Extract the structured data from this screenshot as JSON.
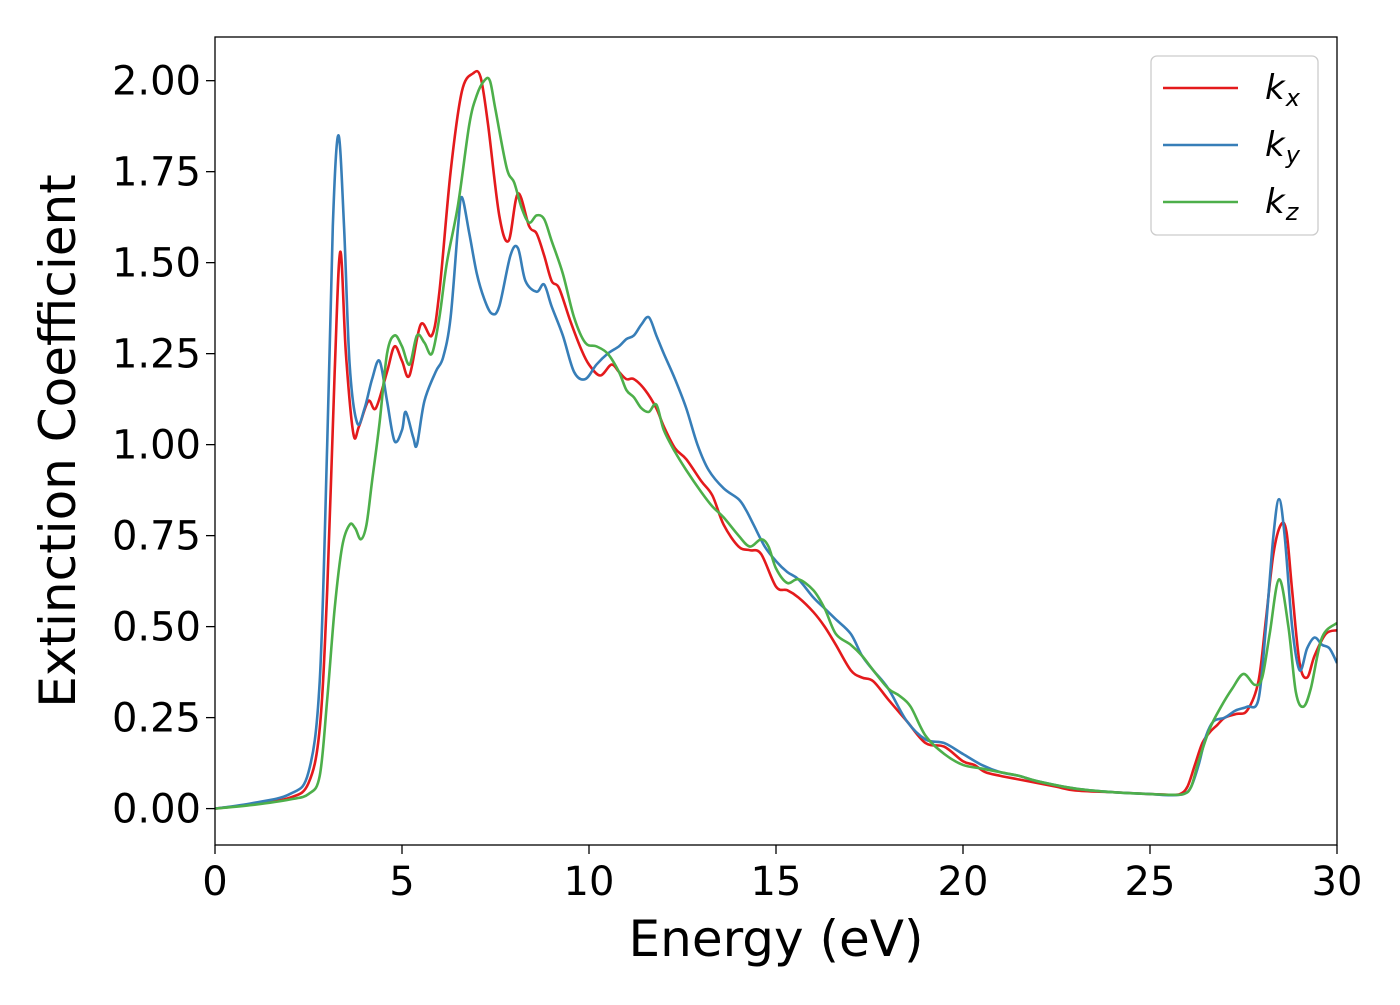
{
  "chart_data": {
    "type": "line",
    "title": "",
    "xlabel": "Energy (eV)",
    "ylabel": "Extinction Coefficient",
    "xlim": [
      0,
      30
    ],
    "ylim": [
      -0.1,
      2.12
    ],
    "xticks": [
      0,
      5,
      10,
      15,
      20,
      25,
      30
    ],
    "xtick_labels": [
      "0",
      "5",
      "10",
      "15",
      "20",
      "25",
      "30"
    ],
    "yticks": [
      0,
      0.25,
      0.5,
      0.75,
      1.0,
      1.25,
      1.5,
      1.75,
      2.0
    ],
    "ytick_labels": [
      "0.00",
      "0.25",
      "0.50",
      "0.75",
      "1.00",
      "1.25",
      "1.50",
      "1.75",
      "2.00"
    ],
    "grid": false,
    "legend_position": "top-right",
    "series": [
      {
        "name": "k_x",
        "label_main": "k",
        "label_sub": "x",
        "color": "#e41a1c",
        "x": [
          0,
          1,
          2,
          2.5,
          2.8,
          3.0,
          3.2,
          3.35,
          3.5,
          3.7,
          3.85,
          4.1,
          4.3,
          4.6,
          4.8,
          5.0,
          5.2,
          5.5,
          5.8,
          6.0,
          6.3,
          6.6,
          6.9,
          7.1,
          7.3,
          7.6,
          7.85,
          8.1,
          8.4,
          8.6,
          8.8,
          9.0,
          9.2,
          9.5,
          9.8,
          10.0,
          10.3,
          10.6,
          10.8,
          11.0,
          11.2,
          11.5,
          11.8,
          12.0,
          12.3,
          12.6,
          13.0,
          13.3,
          13.6,
          14.0,
          14.3,
          14.6,
          15.0,
          15.3,
          15.6,
          16.0,
          16.3,
          16.6,
          17.0,
          17.3,
          17.6,
          18.0,
          18.5,
          19.0,
          19.5,
          20.0,
          20.3,
          20.6,
          21.0,
          21.5,
          22.0,
          22.5,
          23.0,
          24.0,
          25.0,
          25.5,
          25.8,
          26.0,
          26.2,
          26.4,
          26.6,
          26.8,
          27.0,
          27.3,
          27.6,
          27.9,
          28.1,
          28.3,
          28.5,
          28.65,
          28.8,
          29.0,
          29.2,
          29.4,
          29.7,
          30.0
        ],
        "y": [
          0.0,
          0.012,
          0.03,
          0.07,
          0.22,
          0.6,
          1.2,
          1.53,
          1.25,
          1.03,
          1.05,
          1.12,
          1.1,
          1.2,
          1.27,
          1.23,
          1.19,
          1.33,
          1.3,
          1.42,
          1.75,
          1.97,
          2.02,
          2.01,
          1.88,
          1.63,
          1.56,
          1.69,
          1.6,
          1.58,
          1.52,
          1.45,
          1.43,
          1.34,
          1.26,
          1.22,
          1.19,
          1.22,
          1.2,
          1.18,
          1.18,
          1.15,
          1.1,
          1.05,
          0.99,
          0.96,
          0.9,
          0.86,
          0.78,
          0.72,
          0.71,
          0.7,
          0.61,
          0.6,
          0.58,
          0.54,
          0.5,
          0.45,
          0.38,
          0.36,
          0.35,
          0.3,
          0.24,
          0.18,
          0.17,
          0.13,
          0.12,
          0.1,
          0.09,
          0.08,
          0.07,
          0.06,
          0.05,
          0.045,
          0.04,
          0.038,
          0.04,
          0.06,
          0.12,
          0.18,
          0.21,
          0.23,
          0.25,
          0.26,
          0.27,
          0.35,
          0.52,
          0.7,
          0.78,
          0.76,
          0.6,
          0.4,
          0.36,
          0.42,
          0.48,
          0.49
        ]
      },
      {
        "name": "k_y",
        "label_main": "k",
        "label_sub": "y",
        "color": "#377eb8",
        "x": [
          0,
          1,
          2,
          2.5,
          2.8,
          3.0,
          3.15,
          3.3,
          3.45,
          3.6,
          3.8,
          4.0,
          4.2,
          4.4,
          4.6,
          4.8,
          5.0,
          5.1,
          5.3,
          5.4,
          5.6,
          5.9,
          6.1,
          6.3,
          6.5,
          6.6,
          6.8,
          7.0,
          7.2,
          7.4,
          7.6,
          7.9,
          8.1,
          8.3,
          8.6,
          8.8,
          9.0,
          9.3,
          9.6,
          9.9,
          10.2,
          10.5,
          10.8,
          11.0,
          11.2,
          11.4,
          11.6,
          11.8,
          12.0,
          12.3,
          12.6,
          12.9,
          13.2,
          13.6,
          14.0,
          14.2,
          14.4,
          14.7,
          15.0,
          15.3,
          15.6,
          16.0,
          16.3,
          16.6,
          17.0,
          17.3,
          17.6,
          18.0,
          18.5,
          19.0,
          19.5,
          20.0,
          20.5,
          21.0,
          21.5,
          22.0,
          23.0,
          24.0,
          25.0,
          25.5,
          25.9,
          26.1,
          26.3,
          26.5,
          26.7,
          27.0,
          27.3,
          27.6,
          27.9,
          28.1,
          28.3,
          28.45,
          28.6,
          28.8,
          29.0,
          29.2,
          29.4,
          29.6,
          29.8,
          30.0
        ],
        "y": [
          0.0,
          0.015,
          0.04,
          0.1,
          0.35,
          1.0,
          1.6,
          1.85,
          1.6,
          1.22,
          1.06,
          1.1,
          1.18,
          1.23,
          1.12,
          1.01,
          1.04,
          1.09,
          1.02,
          1.0,
          1.12,
          1.2,
          1.24,
          1.35,
          1.6,
          1.68,
          1.58,
          1.47,
          1.4,
          1.36,
          1.38,
          1.52,
          1.54,
          1.45,
          1.42,
          1.44,
          1.38,
          1.3,
          1.2,
          1.18,
          1.22,
          1.25,
          1.27,
          1.29,
          1.3,
          1.33,
          1.35,
          1.3,
          1.25,
          1.18,
          1.1,
          1.0,
          0.93,
          0.88,
          0.85,
          0.82,
          0.78,
          0.72,
          0.68,
          0.65,
          0.63,
          0.58,
          0.55,
          0.52,
          0.48,
          0.42,
          0.38,
          0.33,
          0.24,
          0.19,
          0.18,
          0.15,
          0.12,
          0.1,
          0.09,
          0.075,
          0.055,
          0.045,
          0.04,
          0.037,
          0.04,
          0.06,
          0.12,
          0.2,
          0.24,
          0.25,
          0.27,
          0.28,
          0.3,
          0.5,
          0.75,
          0.85,
          0.75,
          0.5,
          0.38,
          0.44,
          0.47,
          0.45,
          0.44,
          0.4
        ]
      },
      {
        "name": "k_z",
        "label_main": "k",
        "label_sub": "z",
        "color": "#4daf4a",
        "x": [
          0,
          1,
          2,
          2.5,
          2.8,
          3.0,
          3.2,
          3.4,
          3.6,
          3.75,
          3.9,
          4.05,
          4.2,
          4.4,
          4.6,
          4.8,
          5.0,
          5.2,
          5.4,
          5.6,
          5.8,
          6.0,
          6.2,
          6.5,
          6.8,
          7.0,
          7.2,
          7.35,
          7.5,
          7.8,
          8.0,
          8.2,
          8.4,
          8.6,
          8.8,
          9.0,
          9.3,
          9.6,
          9.9,
          10.2,
          10.5,
          10.8,
          11.0,
          11.2,
          11.4,
          11.6,
          11.8,
          12.0,
          12.3,
          12.6,
          13.0,
          13.3,
          13.6,
          14.0,
          14.3,
          14.6,
          14.8,
          15.0,
          15.3,
          15.6,
          16.0,
          16.3,
          16.6,
          17.0,
          17.3,
          17.6,
          18.0,
          18.3,
          18.6,
          19.0,
          19.5,
          20.0,
          20.5,
          21.0,
          21.5,
          22.0,
          23.0,
          24.0,
          25.0,
          25.5,
          25.9,
          26.1,
          26.3,
          26.6,
          26.9,
          27.2,
          27.5,
          27.8,
          28.0,
          28.2,
          28.45,
          28.7,
          28.9,
          29.1,
          29.3,
          29.6,
          30.0
        ],
        "y": [
          0.0,
          0.01,
          0.025,
          0.04,
          0.09,
          0.3,
          0.55,
          0.72,
          0.78,
          0.77,
          0.74,
          0.78,
          0.9,
          1.06,
          1.25,
          1.3,
          1.27,
          1.22,
          1.3,
          1.28,
          1.25,
          1.35,
          1.5,
          1.66,
          1.88,
          1.96,
          2.0,
          2.0,
          1.92,
          1.76,
          1.72,
          1.65,
          1.61,
          1.63,
          1.62,
          1.56,
          1.47,
          1.35,
          1.28,
          1.27,
          1.25,
          1.2,
          1.15,
          1.13,
          1.1,
          1.09,
          1.11,
          1.04,
          0.98,
          0.93,
          0.87,
          0.83,
          0.8,
          0.75,
          0.72,
          0.74,
          0.72,
          0.66,
          0.62,
          0.63,
          0.6,
          0.55,
          0.48,
          0.45,
          0.42,
          0.38,
          0.33,
          0.31,
          0.28,
          0.2,
          0.15,
          0.12,
          0.11,
          0.1,
          0.09,
          0.075,
          0.055,
          0.045,
          0.04,
          0.038,
          0.04,
          0.06,
          0.13,
          0.22,
          0.28,
          0.33,
          0.37,
          0.34,
          0.36,
          0.48,
          0.63,
          0.5,
          0.32,
          0.28,
          0.33,
          0.47,
          0.51
        ]
      }
    ]
  }
}
